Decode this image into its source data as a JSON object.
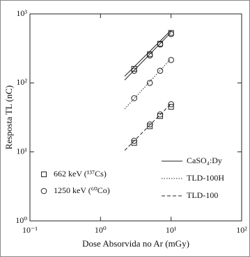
{
  "chart_data": {
    "type": "scatter",
    "x_label": "Dose Absorvida no Ar (mGy)",
    "y_label": "Resposta TL (nC)",
    "xscale": "log",
    "yscale": "log",
    "xlim": [
      0.1,
      100
    ],
    "ylim": [
      1,
      1000
    ],
    "xticks": [
      {
        "value": 0.1,
        "label": "10⁻¹"
      },
      {
        "value": 1,
        "label": "10⁰"
      },
      {
        "value": 10,
        "label": "10¹"
      },
      {
        "value": 100,
        "label": "10²"
      }
    ],
    "yticks": [
      {
        "value": 1,
        "label": "10⁰"
      },
      {
        "value": 10,
        "label": "10¹"
      },
      {
        "value": 100,
        "label": "10²"
      },
      {
        "value": 1000,
        "label": "10³"
      }
    ],
    "series": [
      {
        "name": "662 keV (¹³⁷Cs)",
        "mode": "markers",
        "marker": "square",
        "color": "#222",
        "x": [
          3,
          5,
          7,
          10,
          3,
          5,
          7,
          10
        ],
        "values": [
          160,
          260,
          370,
          530,
          13.5,
          23.5,
          33,
          45
        ]
      },
      {
        "name": "1250 keV (⁶⁰Co)",
        "mode": "markers",
        "marker": "circle",
        "color": "#222",
        "x": [
          3,
          5,
          7,
          10,
          3,
          5,
          7,
          10,
          3,
          5,
          7,
          10
        ],
        "values": [
          150,
          250,
          360,
          510,
          60,
          100,
          150,
          215,
          14.5,
          25,
          35,
          49
        ]
      },
      {
        "name": "CaSO₄:Dy",
        "mode": "line",
        "dash": "solid",
        "color": "#222",
        "x": [
          2.2,
          10,
          2.2,
          2.2,
          10
        ],
        "values": [
          125,
          580,
          null,
          110,
          540
        ]
      },
      {
        "name": "TLD-100H",
        "mode": "line",
        "dash": "dotted",
        "color": "#222",
        "x": [
          2.2,
          10
        ],
        "values": [
          42,
          225
        ]
      },
      {
        "name": "TLD-100",
        "mode": "line",
        "dash": "dashed",
        "color": "#222",
        "x": [
          2.2,
          10
        ],
        "values": [
          10.5,
          50
        ]
      }
    ]
  }
}
